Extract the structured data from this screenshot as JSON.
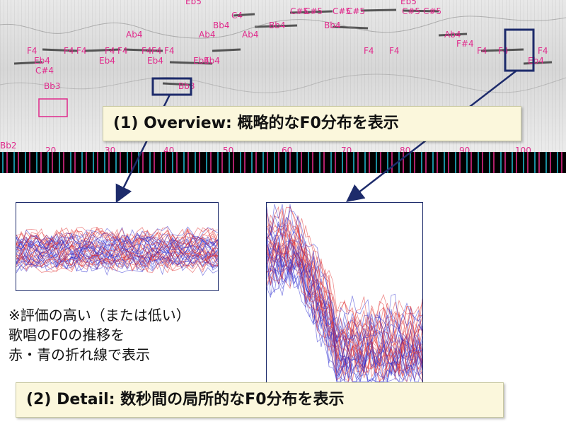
{
  "spectrogram": {
    "note_labels": [
      "Eb5",
      "C4",
      "C#5",
      "C#5",
      "C#5",
      "C#5",
      "Eb5",
      "C#5",
      "C#5",
      "Bb4",
      "Bb4",
      "Bb4",
      "Ab4",
      "Ab4",
      "Ab4",
      "Ab4",
      "F4",
      "F4",
      "F4",
      "F4",
      "F4",
      "F4",
      "F4",
      "F4",
      "F4",
      "F4",
      "F4",
      "F4",
      "F4",
      "F#4",
      "Eb4",
      "Eb4",
      "Eb4",
      "Eb4",
      "Eb4",
      "Eb4",
      "C#4",
      "Bb3",
      "Bb3",
      "Bb2"
    ],
    "axis_ticks": [
      "20",
      "30",
      "40",
      "50",
      "60",
      "70",
      "80",
      "90",
      "100"
    ]
  },
  "callouts": {
    "overview": "(1) Overview: 概略的なF0分布を表示",
    "detail": "(2) Detail: 数秒間の局所的なF0分布を表示"
  },
  "note": {
    "line1": "※評価の高い（または低い）",
    "line2": "歌唱のF0の推移を",
    "line3": "赤・青の折れ線で表示"
  },
  "colors": {
    "note_label": "#e02a8c",
    "highlight_box": "#1d2b6b",
    "callout_bg": "#fbf7dc",
    "red_line": "#e03030",
    "blue_line": "#2a2ad0"
  }
}
